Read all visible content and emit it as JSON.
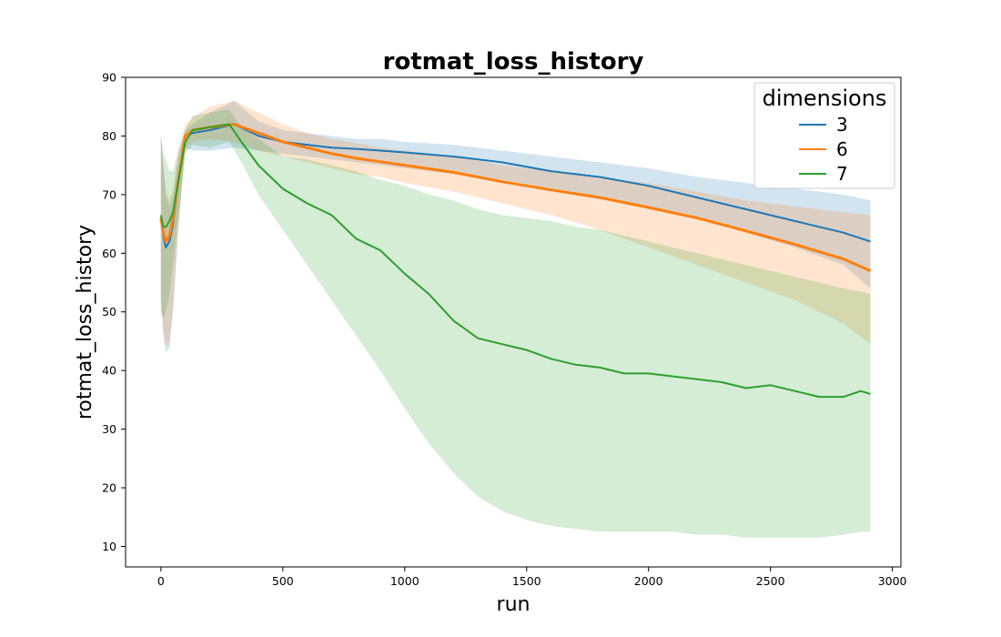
{
  "chart_data": {
    "type": "line",
    "title": "rotmat_loss_history",
    "xlabel": "run",
    "ylabel": "rotmat_loss_history",
    "xlim": [
      -145,
      3035
    ],
    "ylim": [
      6.5,
      90
    ],
    "xticks": [
      0,
      500,
      1000,
      1500,
      2000,
      2500,
      3000
    ],
    "yticks": [
      10,
      20,
      30,
      40,
      50,
      60,
      70,
      80,
      90
    ],
    "grid": false,
    "legend": {
      "title": "dimensions",
      "position": "top-right"
    },
    "series": [
      {
        "name": "3",
        "color": "#1f77b4",
        "x": [
          0,
          10,
          20,
          35,
          50,
          70,
          100,
          130,
          200,
          300,
          400,
          500,
          600,
          700,
          800,
          900,
          1000,
          1200,
          1400,
          1600,
          1800,
          2000,
          2200,
          2400,
          2600,
          2800,
          2910
        ],
        "mean": [
          66,
          63,
          61,
          62,
          65,
          72,
          80,
          80.5,
          81,
          82,
          80,
          79,
          78.5,
          78,
          77.8,
          77.5,
          77.2,
          76.5,
          75.5,
          74,
          73,
          71.5,
          69.5,
          67.5,
          65.5,
          63.5,
          62
        ],
        "lower": [
          52,
          46,
          43,
          44,
          50,
          63,
          78,
          77.5,
          77.5,
          78,
          77.5,
          77,
          76.5,
          76,
          75.5,
          75,
          74.5,
          73.5,
          72.5,
          71,
          69.5,
          68,
          66,
          63.5,
          61,
          58,
          54
        ],
        "upper": [
          80,
          75,
          70,
          68,
          70,
          76,
          81,
          82,
          84,
          86,
          82.5,
          81,
          80.5,
          80,
          79.5,
          79.5,
          79,
          78.5,
          77.5,
          76.5,
          75.5,
          74.5,
          73,
          72,
          71,
          70,
          69
        ]
      },
      {
        "name": "6",
        "color": "#ff7f0e",
        "x": [
          0,
          10,
          20,
          35,
          50,
          70,
          100,
          130,
          200,
          300,
          400,
          500,
          600,
          700,
          800,
          900,
          1000,
          1200,
          1400,
          1600,
          1800,
          2000,
          2200,
          2400,
          2600,
          2800,
          2910
        ],
        "mean": [
          66,
          63.5,
          62,
          63,
          66,
          72,
          80,
          81,
          81.5,
          82,
          80.5,
          79,
          78,
          77,
          76.2,
          75.6,
          75,
          73.8,
          72.2,
          70.8,
          69.5,
          67.8,
          66,
          63.8,
          61.5,
          59,
          57
        ],
        "lower": [
          52,
          47,
          44,
          45,
          51,
          64,
          78,
          79,
          79.5,
          79,
          77.5,
          76.5,
          75.5,
          74.5,
          73.5,
          73,
          72,
          70.5,
          68.5,
          66.5,
          64,
          61,
          58,
          55,
          52,
          48,
          44.5
        ],
        "upper": [
          80,
          75,
          71,
          69,
          71,
          77,
          82,
          83,
          85,
          86,
          84,
          82,
          80.5,
          79.5,
          78.8,
          78,
          77.5,
          76.5,
          75,
          74,
          72.8,
          72,
          70.5,
          69,
          68,
          67,
          66.5
        ]
      },
      {
        "name": "7",
        "color": "#2ca02c",
        "x": [
          0,
          10,
          20,
          35,
          50,
          70,
          100,
          130,
          200,
          280,
          330,
          400,
          500,
          600,
          700,
          800,
          900,
          1000,
          1100,
          1200,
          1300,
          1400,
          1500,
          1600,
          1700,
          1800,
          1900,
          2000,
          2100,
          2200,
          2300,
          2400,
          2500,
          2600,
          2700,
          2800,
          2870,
          2910
        ],
        "mean": [
          66.5,
          64.5,
          64.5,
          65.5,
          67,
          72,
          79,
          81,
          81.5,
          82,
          79,
          75,
          71,
          68.5,
          66.5,
          62.5,
          60.5,
          56.5,
          53,
          48.5,
          45.5,
          44.5,
          43.5,
          42,
          41,
          40.5,
          39.5,
          39.5,
          39,
          38.5,
          38,
          37,
          37.5,
          36.5,
          35.5,
          35.5,
          36.5,
          36
        ],
        "lower": [
          50,
          49,
          50,
          53,
          58,
          66,
          77,
          78.5,
          78,
          79,
          75.5,
          70,
          64,
          58,
          52,
          46,
          40,
          33.5,
          27.5,
          22.5,
          18.5,
          16,
          14.5,
          13.5,
          13,
          12.5,
          12.5,
          12.5,
          12.5,
          12,
          12,
          11.5,
          11.5,
          11.5,
          11.5,
          12,
          12.5,
          12.5
        ],
        "upper": [
          80.5,
          77,
          76,
          74,
          74,
          77.5,
          81,
          83.5,
          84,
          84.5,
          81.5,
          79.5,
          76.5,
          76,
          75,
          74,
          72.5,
          71.5,
          70,
          69,
          67.5,
          66.5,
          66,
          65.5,
          64.5,
          64,
          63,
          62,
          61,
          60,
          59,
          58,
          57,
          56,
          55,
          54,
          53.5,
          53
        ]
      }
    ]
  }
}
